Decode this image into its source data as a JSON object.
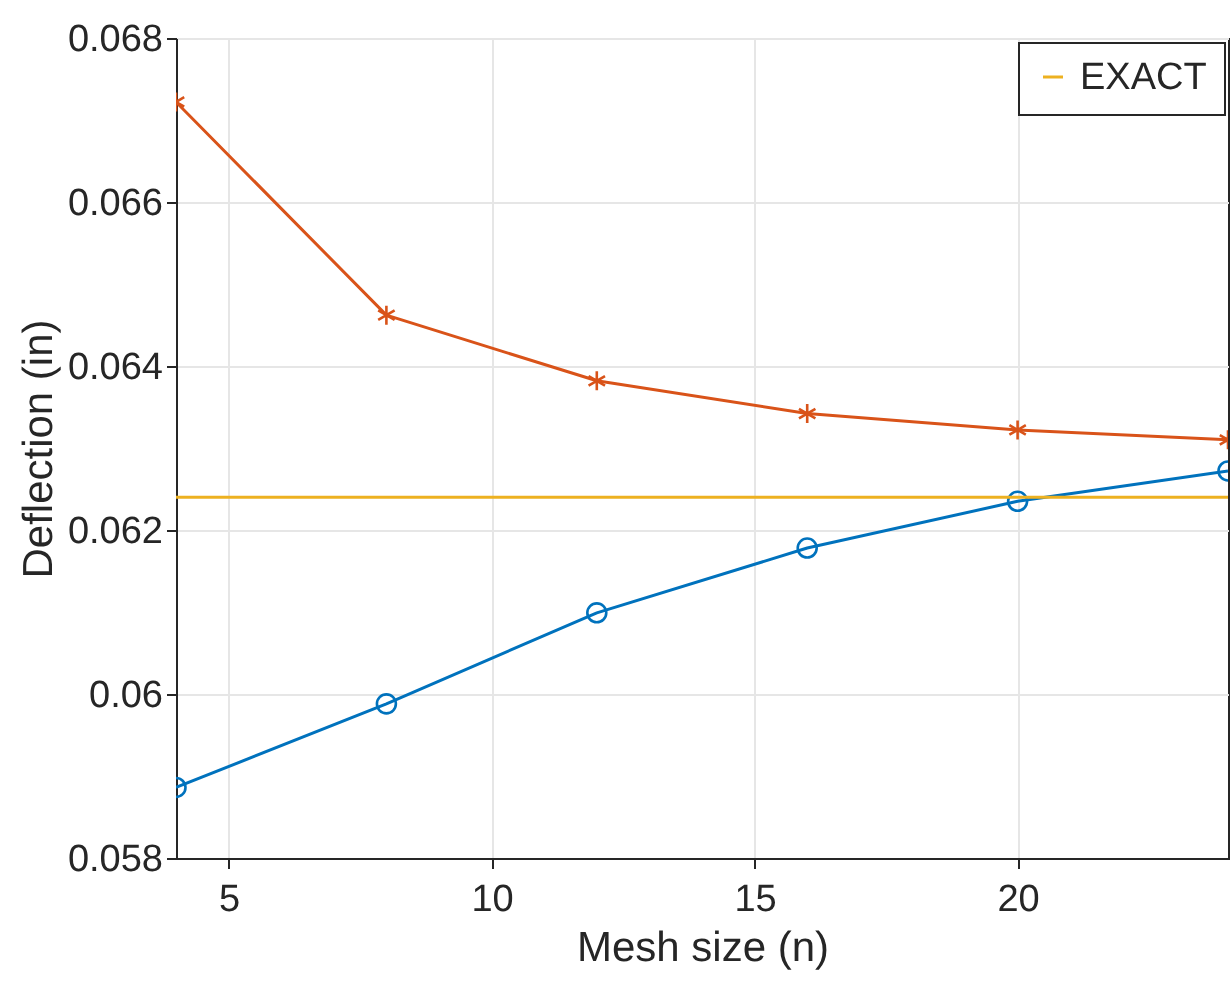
{
  "chart_data": {
    "type": "line",
    "xlabel": "Mesh size (n)",
    "ylabel": "Deflection (in)",
    "x": [
      4,
      8,
      12,
      16,
      20,
      24
    ],
    "series": [
      {
        "color": "#0072bd",
        "marker": "circle",
        "values": [
          0.05886,
          0.05988,
          0.06099,
          0.06178,
          0.06235,
          0.06272
        ]
      },
      {
        "color": "#d95319",
        "marker": "cross",
        "values": [
          0.06722,
          0.06462,
          0.06382,
          0.06342,
          0.06322,
          0.0631
        ]
      },
      {
        "name": "EXACT",
        "color": "#edb120",
        "marker": "none",
        "values": [
          0.0624,
          0.0624,
          0.0624,
          0.0624,
          0.0624,
          0.0624
        ]
      }
    ],
    "xlim": [
      4,
      24
    ],
    "xticks": [
      5,
      10,
      15,
      20
    ],
    "ylim": [
      0.058,
      0.068
    ],
    "yticks": [
      0.058,
      {
        "value": 0.06,
        "label": "0.06"
      },
      0.062,
      0.064,
      0.066,
      0.068
    ],
    "grid": true,
    "legend": "top right",
    "line_style": "solid"
  }
}
